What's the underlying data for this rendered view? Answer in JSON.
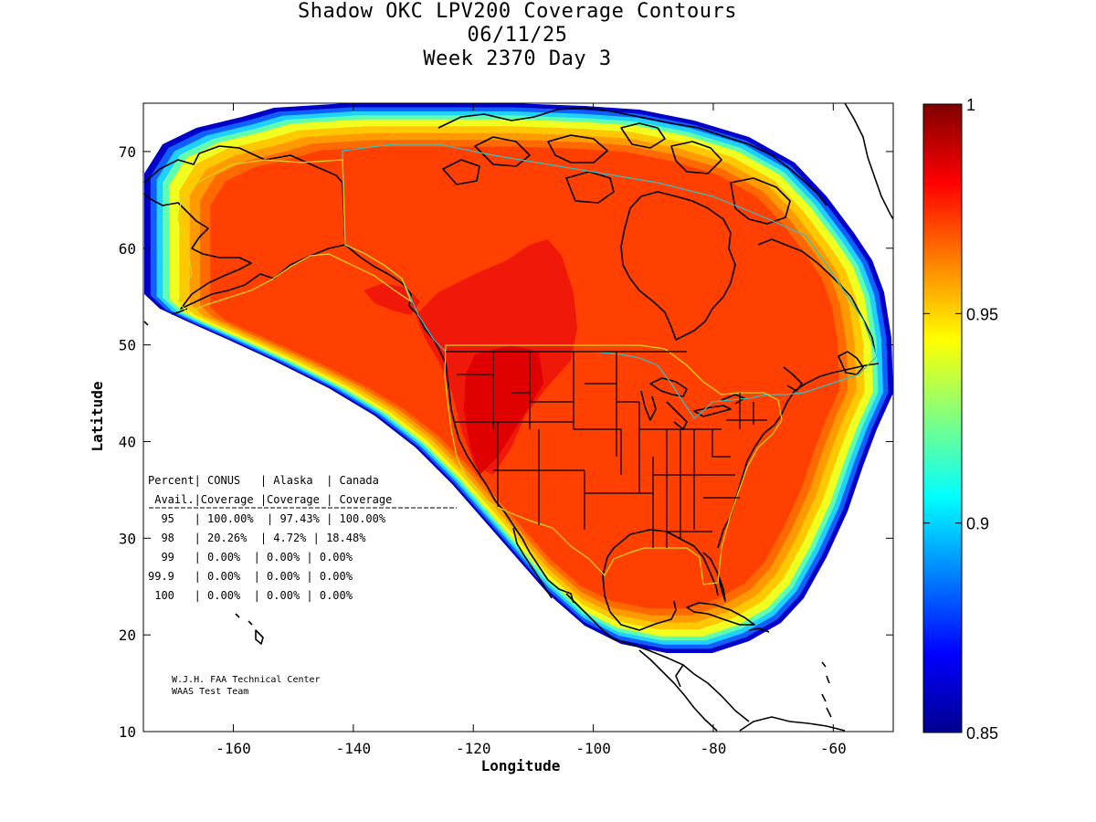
{
  "title": {
    "line1": "Shadow OKC LPV200 Coverage Contours",
    "line2": "06/11/25",
    "line3": "Week 2370 Day 3"
  },
  "axes": {
    "xlabel": "Longitude",
    "ylabel": "Latitude",
    "xlim": [
      -175,
      -50
    ],
    "ylim": [
      10,
      75
    ],
    "xticks": [
      -160,
      -140,
      -120,
      -100,
      -80,
      -60
    ],
    "yticks": [
      10,
      20,
      30,
      40,
      50,
      60,
      70
    ],
    "xtick_labels": [
      "-160",
      "-140",
      "-120",
      "-100",
      "-80",
      "-60"
    ],
    "ytick_labels": [
      "10",
      "20",
      "30",
      "40",
      "50",
      "60",
      "70"
    ]
  },
  "colorbar": {
    "min": 0.85,
    "max": 1,
    "ticks": [
      0.85,
      0.9,
      0.95,
      1
    ],
    "tick_labels": [
      "0.85",
      "0.9",
      "0.95",
      "1"
    ],
    "colors": [
      "#00008f",
      "#0000ff",
      "#0080ff",
      "#00ffff",
      "#80ff80",
      "#ffff00",
      "#ff8000",
      "#ff0000",
      "#800000"
    ]
  },
  "coverage_colors": {
    "deep_blue": "#0000c8",
    "blue": "#1060ff",
    "cyan": "#20d0ff",
    "aqua": "#60ffb0",
    "yellow": "#f0ff20",
    "gold": "#ffc800",
    "orange": "#ff9a00",
    "dark_orange": "#ff6a00",
    "main": "#ff4000",
    "red": "#f01808",
    "core": "#e00000"
  },
  "stats": {
    "header1": "Percent| CONUS   | Alaska  | Canada",
    "header2": " Avail.|Coverage |Coverage | Coverage",
    "rows": [
      "  95   | 100.00%  | 97.43% | 100.00%",
      "  98   | 20.26%  | 4.72% | 18.48%",
      "  99   | 0.00%  | 0.00% | 0.00%",
      "99.9   | 0.00%  | 0.00% | 0.00%",
      " 100   | 0.00%  | 0.00% | 0.00%"
    ]
  },
  "credit": {
    "line1": "W.J.H. FAA Technical Center",
    "line2": "WAAS Test Team"
  }
}
